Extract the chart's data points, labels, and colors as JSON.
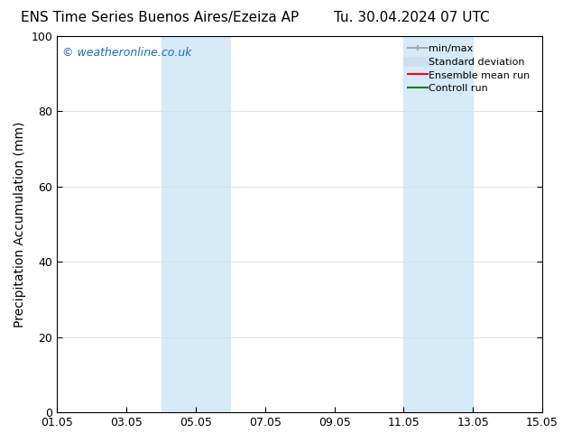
{
  "title_left": "ENS Time Series Buenos Aires/Ezeiza AP",
  "title_right": "Tu. 30.04.2024 07 UTC",
  "ylabel": "Precipitation Accumulation (mm)",
  "ylim": [
    0,
    100
  ],
  "yticks": [
    0,
    20,
    40,
    60,
    80,
    100
  ],
  "x_start": 1.05,
  "x_end": 15.05,
  "xtick_labels": [
    "01.05",
    "03.05",
    "05.05",
    "07.05",
    "09.05",
    "11.05",
    "13.05",
    "15.05"
  ],
  "xtick_positions": [
    1.05,
    3.05,
    5.05,
    7.05,
    9.05,
    11.05,
    13.05,
    15.05
  ],
  "shaded_regions": [
    {
      "x_start": 4.05,
      "x_end": 6.05
    },
    {
      "x_start": 11.05,
      "x_end": 13.05
    }
  ],
  "shaded_color": "#d6eaf8",
  "watermark_text": "© weatheronline.co.uk",
  "watermark_color": "#1a6abf",
  "legend_entries": [
    {
      "label": "min/max",
      "color": "#aaaaaa",
      "lw": 1.5,
      "type": "minmax"
    },
    {
      "label": "Standard deviation",
      "color": "#cce0f0",
      "lw": 8,
      "type": "line"
    },
    {
      "label": "Ensemble mean run",
      "color": "red",
      "lw": 1.5,
      "type": "line"
    },
    {
      "label": "Controll run",
      "color": "green",
      "lw": 1.5,
      "type": "line"
    }
  ],
  "background_color": "#ffffff",
  "plot_bg_color": "#ffffff",
  "font_family": "DejaVu Sans",
  "title_fontsize": 11,
  "tick_fontsize": 9,
  "ylabel_fontsize": 10,
  "legend_fontsize": 8
}
